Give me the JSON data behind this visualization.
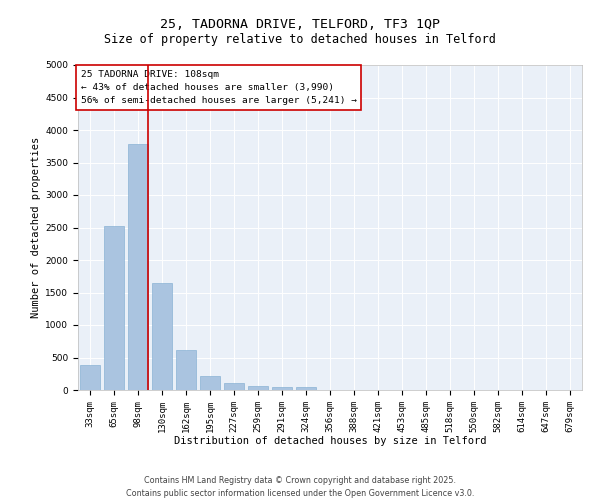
{
  "title": "25, TADORNA DRIVE, TELFORD, TF3 1QP",
  "subtitle": "Size of property relative to detached houses in Telford",
  "xlabel": "Distribution of detached houses by size in Telford",
  "ylabel": "Number of detached properties",
  "categories": [
    "33sqm",
    "65sqm",
    "98sqm",
    "130sqm",
    "162sqm",
    "195sqm",
    "227sqm",
    "259sqm",
    "291sqm",
    "324sqm",
    "356sqm",
    "388sqm",
    "421sqm",
    "453sqm",
    "485sqm",
    "518sqm",
    "550sqm",
    "582sqm",
    "614sqm",
    "647sqm",
    "679sqm"
  ],
  "values": [
    390,
    2530,
    3780,
    1650,
    610,
    220,
    110,
    55,
    40,
    40,
    0,
    0,
    0,
    0,
    0,
    0,
    0,
    0,
    0,
    0,
    0
  ],
  "bar_color": "#aac4e0",
  "bar_edge_color": "#7aaad0",
  "vline_color": "#cc0000",
  "vline_pos": 2.43,
  "ylim": [
    0,
    5000
  ],
  "yticks": [
    0,
    500,
    1000,
    1500,
    2000,
    2500,
    3000,
    3500,
    4000,
    4500,
    5000
  ],
  "annotation_title": "25 TADORNA DRIVE: 108sqm",
  "annotation_line1": "← 43% of detached houses are smaller (3,990)",
  "annotation_line2": "56% of semi-detached houses are larger (5,241) →",
  "annotation_box_color": "#cc0000",
  "footer_line1": "Contains HM Land Registry data © Crown copyright and database right 2025.",
  "footer_line2": "Contains public sector information licensed under the Open Government Licence v3.0.",
  "bg_color": "#eaf0f8",
  "fig_bg_color": "#ffffff",
  "title_fontsize": 9.5,
  "subtitle_fontsize": 8.5,
  "axis_label_fontsize": 7.5,
  "tick_fontsize": 6.5,
  "annotation_fontsize": 6.8,
  "footer_fontsize": 5.8,
  "ylabel_fontsize": 7.5
}
